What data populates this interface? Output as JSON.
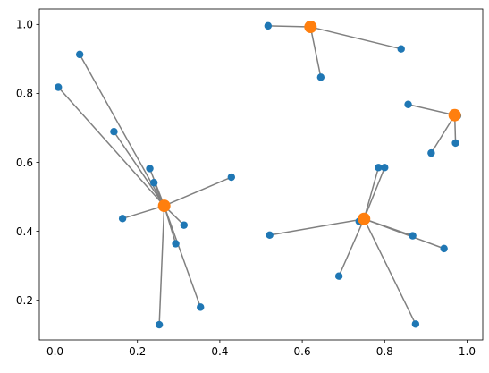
{
  "chart_data": {
    "type": "scatter",
    "title": "",
    "xlabel": "",
    "ylabel": "",
    "xlim": [
      -0.038,
      1.038
    ],
    "ylim": [
      0.085,
      1.045
    ],
    "xticks": [
      0.0,
      0.2,
      0.4,
      0.6,
      0.8,
      1.0
    ],
    "xtick_labels": [
      "0.0",
      "0.2",
      "0.4",
      "0.6",
      "0.8",
      "1.0"
    ],
    "yticks": [
      0.2,
      0.4,
      0.6,
      0.8,
      1.0
    ],
    "ytick_labels": [
      "0.2",
      "0.4",
      "0.6",
      "0.8",
      "1.0"
    ],
    "grid": false,
    "legend": "none",
    "colors": {
      "points": "#1f77b4",
      "centers": "#ff7f0e",
      "lines": "#808080"
    },
    "points": [
      {
        "x": 0.008,
        "y": 0.818
      },
      {
        "x": 0.06,
        "y": 0.913
      },
      {
        "x": 0.143,
        "y": 0.689
      },
      {
        "x": 0.23,
        "y": 0.582
      },
      {
        "x": 0.24,
        "y": 0.541
      },
      {
        "x": 0.164,
        "y": 0.437
      },
      {
        "x": 0.313,
        "y": 0.418
      },
      {
        "x": 0.293,
        "y": 0.364
      },
      {
        "x": 0.353,
        "y": 0.18
      },
      {
        "x": 0.253,
        "y": 0.129
      },
      {
        "x": 0.428,
        "y": 0.557
      },
      {
        "x": 0.517,
        "y": 0.996
      },
      {
        "x": 0.84,
        "y": 0.929
      },
      {
        "x": 0.645,
        "y": 0.847
      },
      {
        "x": 0.857,
        "y": 0.768
      },
      {
        "x": 0.977,
        "y": 0.735
      },
      {
        "x": 0.972,
        "y": 0.656
      },
      {
        "x": 0.913,
        "y": 0.627
      },
      {
        "x": 0.785,
        "y": 0.585
      },
      {
        "x": 0.8,
        "y": 0.585
      },
      {
        "x": 0.738,
        "y": 0.429
      },
      {
        "x": 0.521,
        "y": 0.389
      },
      {
        "x": 0.868,
        "y": 0.387
      },
      {
        "x": 0.944,
        "y": 0.35
      },
      {
        "x": 0.689,
        "y": 0.27
      },
      {
        "x": 0.875,
        "y": 0.131
      }
    ],
    "centers": [
      {
        "x": 0.265,
        "y": 0.474
      },
      {
        "x": 0.62,
        "y": 0.993
      },
      {
        "x": 0.97,
        "y": 0.737
      },
      {
        "x": 0.75,
        "y": 0.436
      }
    ],
    "links": [
      {
        "center": 0,
        "point": 0
      },
      {
        "center": 0,
        "point": 1
      },
      {
        "center": 0,
        "point": 2
      },
      {
        "center": 0,
        "point": 3
      },
      {
        "center": 0,
        "point": 4
      },
      {
        "center": 0,
        "point": 5
      },
      {
        "center": 0,
        "point": 6
      },
      {
        "center": 0,
        "point": 7
      },
      {
        "center": 0,
        "point": 8
      },
      {
        "center": 0,
        "point": 9
      },
      {
        "center": 0,
        "point": 10
      },
      {
        "center": 1,
        "point": 11
      },
      {
        "center": 1,
        "point": 12
      },
      {
        "center": 1,
        "point": 13
      },
      {
        "center": 2,
        "point": 14
      },
      {
        "center": 2,
        "point": 15
      },
      {
        "center": 2,
        "point": 16
      },
      {
        "center": 2,
        "point": 17
      },
      {
        "center": 3,
        "point": 18
      },
      {
        "center": 3,
        "point": 19
      },
      {
        "center": 3,
        "point": 20
      },
      {
        "center": 3,
        "point": 21
      },
      {
        "center": 3,
        "point": 22
      },
      {
        "center": 3,
        "point": 23
      },
      {
        "center": 3,
        "point": 24
      },
      {
        "center": 3,
        "point": 25
      }
    ]
  }
}
